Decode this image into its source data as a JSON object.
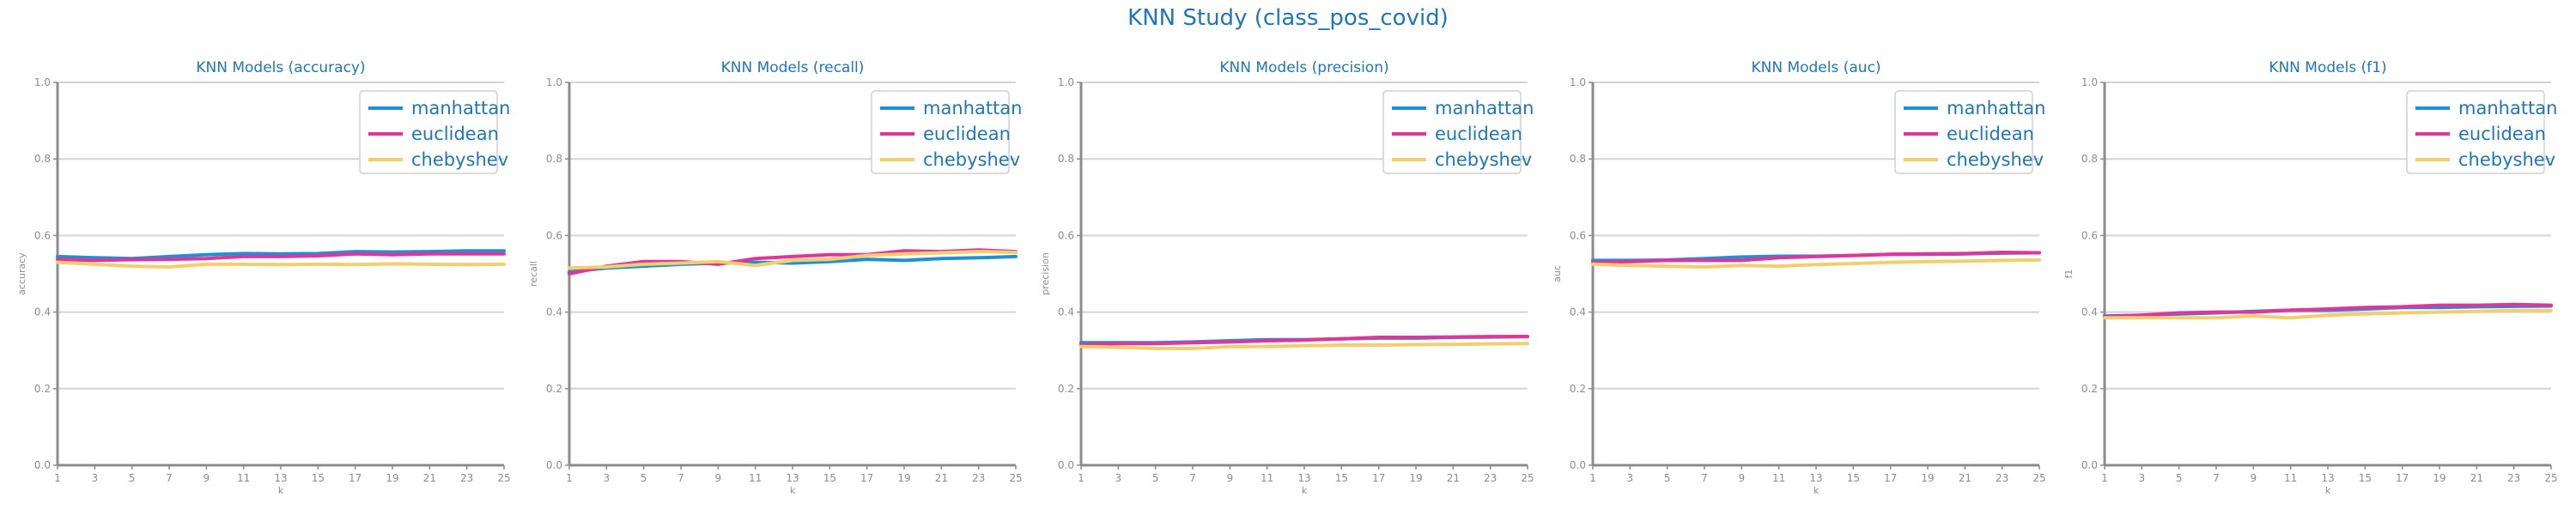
{
  "suptitle": "KNN Study (class_pos_covid)",
  "colors": {
    "manhattan": "#1e90d6",
    "euclidean": "#e0359a",
    "chebyshev": "#f2cf6b"
  },
  "chart_data": [
    {
      "type": "line",
      "title": "KNN Models (accuracy)",
      "xlabel": "k",
      "ylabel": "accuracy",
      "x": [
        1,
        3,
        5,
        7,
        9,
        11,
        13,
        15,
        17,
        19,
        21,
        23,
        25
      ],
      "ylim": [
        0,
        1
      ],
      "yticks": [
        0.0,
        0.2,
        0.4,
        0.6,
        0.8,
        1.0
      ],
      "grid": true,
      "legend": "top-right",
      "series": [
        {
          "name": "manhattan",
          "values": [
            0.545,
            0.542,
            0.54,
            0.545,
            0.55,
            0.553,
            0.552,
            0.553,
            0.558,
            0.557,
            0.558,
            0.56,
            0.56
          ]
        },
        {
          "name": "euclidean",
          "values": [
            0.538,
            0.535,
            0.537,
            0.538,
            0.54,
            0.545,
            0.545,
            0.547,
            0.552,
            0.55,
            0.552,
            0.552,
            0.552
          ]
        },
        {
          "name": "chebyshev",
          "values": [
            0.53,
            0.525,
            0.52,
            0.518,
            0.525,
            0.525,
            0.524,
            0.525,
            0.524,
            0.526,
            0.525,
            0.524,
            0.525
          ]
        }
      ]
    },
    {
      "type": "line",
      "title": "KNN Models (recall)",
      "xlabel": "k",
      "ylabel": "recall",
      "x": [
        1,
        3,
        5,
        7,
        9,
        11,
        13,
        15,
        17,
        19,
        21,
        23,
        25
      ],
      "ylim": [
        0,
        1
      ],
      "yticks": [
        0.0,
        0.2,
        0.4,
        0.6,
        0.8,
        1.0
      ],
      "grid": true,
      "legend": "top-right",
      "series": [
        {
          "name": "manhattan",
          "values": [
            0.505,
            0.515,
            0.52,
            0.525,
            0.528,
            0.53,
            0.528,
            0.532,
            0.538,
            0.535,
            0.54,
            0.542,
            0.545
          ]
        },
        {
          "name": "euclidean",
          "values": [
            0.5,
            0.52,
            0.532,
            0.532,
            0.525,
            0.54,
            0.545,
            0.55,
            0.55,
            0.56,
            0.558,
            0.562,
            0.558
          ]
        },
        {
          "name": "chebyshev",
          "values": [
            0.515,
            0.518,
            0.525,
            0.528,
            0.532,
            0.522,
            0.535,
            0.538,
            0.548,
            0.552,
            0.555,
            0.558,
            0.556
          ]
        }
      ]
    },
    {
      "type": "line",
      "title": "KNN Models (precision)",
      "xlabel": "k",
      "ylabel": "precision",
      "x": [
        1,
        3,
        5,
        7,
        9,
        11,
        13,
        15,
        17,
        19,
        21,
        23,
        25
      ],
      "ylim": [
        0,
        1
      ],
      "yticks": [
        0.0,
        0.2,
        0.4,
        0.6,
        0.8,
        1.0
      ],
      "grid": true,
      "legend": "top-right",
      "series": [
        {
          "name": "manhattan",
          "values": [
            0.32,
            0.32,
            0.32,
            0.322,
            0.325,
            0.328,
            0.328,
            0.33,
            0.332,
            0.332,
            0.334,
            0.335,
            0.336
          ]
        },
        {
          "name": "euclidean",
          "values": [
            0.315,
            0.318,
            0.318,
            0.32,
            0.322,
            0.325,
            0.327,
            0.33,
            0.334,
            0.334,
            0.335,
            0.336,
            0.336
          ]
        },
        {
          "name": "chebyshev",
          "values": [
            0.31,
            0.308,
            0.305,
            0.305,
            0.31,
            0.31,
            0.312,
            0.314,
            0.314,
            0.315,
            0.316,
            0.317,
            0.318
          ]
        }
      ]
    },
    {
      "type": "line",
      "title": "KNN Models (auc)",
      "xlabel": "k",
      "ylabel": "auc",
      "x": [
        1,
        3,
        5,
        7,
        9,
        11,
        13,
        15,
        17,
        19,
        21,
        23,
        25
      ],
      "ylim": [
        0,
        1
      ],
      "yticks": [
        0.0,
        0.2,
        0.4,
        0.6,
        0.8,
        1.0
      ],
      "grid": true,
      "legend": "top-right",
      "series": [
        {
          "name": "manhattan",
          "values": [
            0.535,
            0.535,
            0.536,
            0.54,
            0.544,
            0.546,
            0.546,
            0.548,
            0.551,
            0.551,
            0.552,
            0.554,
            0.555
          ]
        },
        {
          "name": "euclidean",
          "values": [
            0.53,
            0.532,
            0.535,
            0.535,
            0.535,
            0.542,
            0.545,
            0.548,
            0.551,
            0.552,
            0.553,
            0.556,
            0.555
          ]
        },
        {
          "name": "chebyshev",
          "values": [
            0.525,
            0.522,
            0.52,
            0.518,
            0.522,
            0.52,
            0.524,
            0.527,
            0.53,
            0.532,
            0.533,
            0.535,
            0.536
          ]
        }
      ]
    },
    {
      "type": "line",
      "title": "KNN Models (f1)",
      "xlabel": "k",
      "ylabel": "f1",
      "x": [
        1,
        3,
        5,
        7,
        9,
        11,
        13,
        15,
        17,
        19,
        21,
        23,
        25
      ],
      "ylim": [
        0,
        1
      ],
      "yticks": [
        0.0,
        0.2,
        0.4,
        0.6,
        0.8,
        1.0
      ],
      "grid": true,
      "legend": "top-right",
      "series": [
        {
          "name": "manhattan",
          "values": [
            0.39,
            0.392,
            0.395,
            0.398,
            0.402,
            0.405,
            0.405,
            0.408,
            0.412,
            0.412,
            0.414,
            0.415,
            0.416
          ]
        },
        {
          "name": "euclidean",
          "values": [
            0.388,
            0.392,
            0.398,
            0.4,
            0.4,
            0.405,
            0.408,
            0.412,
            0.414,
            0.418,
            0.418,
            0.42,
            0.418
          ]
        },
        {
          "name": "chebyshev",
          "values": [
            0.385,
            0.385,
            0.385,
            0.385,
            0.39,
            0.385,
            0.392,
            0.395,
            0.398,
            0.4,
            0.402,
            0.404,
            0.404
          ]
        }
      ]
    }
  ]
}
